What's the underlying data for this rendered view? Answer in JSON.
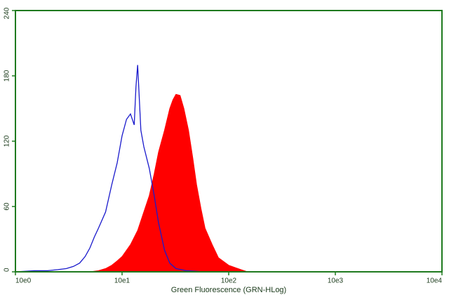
{
  "chart_data": {
    "type": "histogram-overlay",
    "x_label": "Green Fluorescence (GRN-HLog)",
    "xlog": true,
    "xlim": [
      1,
      10000
    ],
    "xticks": [
      {
        "value": 1,
        "label": "10e0"
      },
      {
        "value": 10,
        "label": "10e1"
      },
      {
        "value": 100,
        "label": "10e2"
      },
      {
        "value": 1000,
        "label": "10e3"
      },
      {
        "value": 10000,
        "label": "10e4"
      }
    ],
    "ylim": [
      0,
      240
    ],
    "yticks": [
      0,
      60,
      120,
      180,
      240
    ],
    "axis_color": "#1f7a1f",
    "series": [
      {
        "color": "#ff0000",
        "fill": true,
        "x": [
          5,
          6,
          7,
          8,
          9,
          10,
          12,
          14,
          16,
          18,
          20,
          22,
          25,
          28,
          30,
          32,
          35,
          38,
          42,
          46,
          50,
          55,
          60,
          70,
          80,
          100,
          130,
          150
        ],
        "values": [
          0,
          1,
          3,
          6,
          10,
          14,
          25,
          38,
          55,
          70,
          90,
          110,
          130,
          150,
          158,
          163,
          162,
          150,
          130,
          105,
          80,
          58,
          40,
          25,
          13,
          6,
          2,
          0
        ]
      },
      {
        "color": "#1a1acc",
        "fill": false,
        "x": [
          1,
          1.5,
          2,
          2.5,
          3,
          3.5,
          4,
          4.5,
          5,
          5.5,
          6,
          7,
          8,
          9,
          10,
          11,
          12,
          13,
          13.5,
          14,
          15,
          16,
          18,
          20,
          22,
          25,
          28,
          32,
          40,
          60,
          100,
          200
        ],
        "values": [
          0,
          1,
          1,
          2,
          3,
          5,
          8,
          14,
          22,
          32,
          40,
          55,
          80,
          100,
          125,
          140,
          145,
          135,
          170,
          190,
          130,
          115,
          95,
          70,
          45,
          20,
          8,
          3,
          1,
          0,
          0,
          0
        ]
      }
    ]
  }
}
